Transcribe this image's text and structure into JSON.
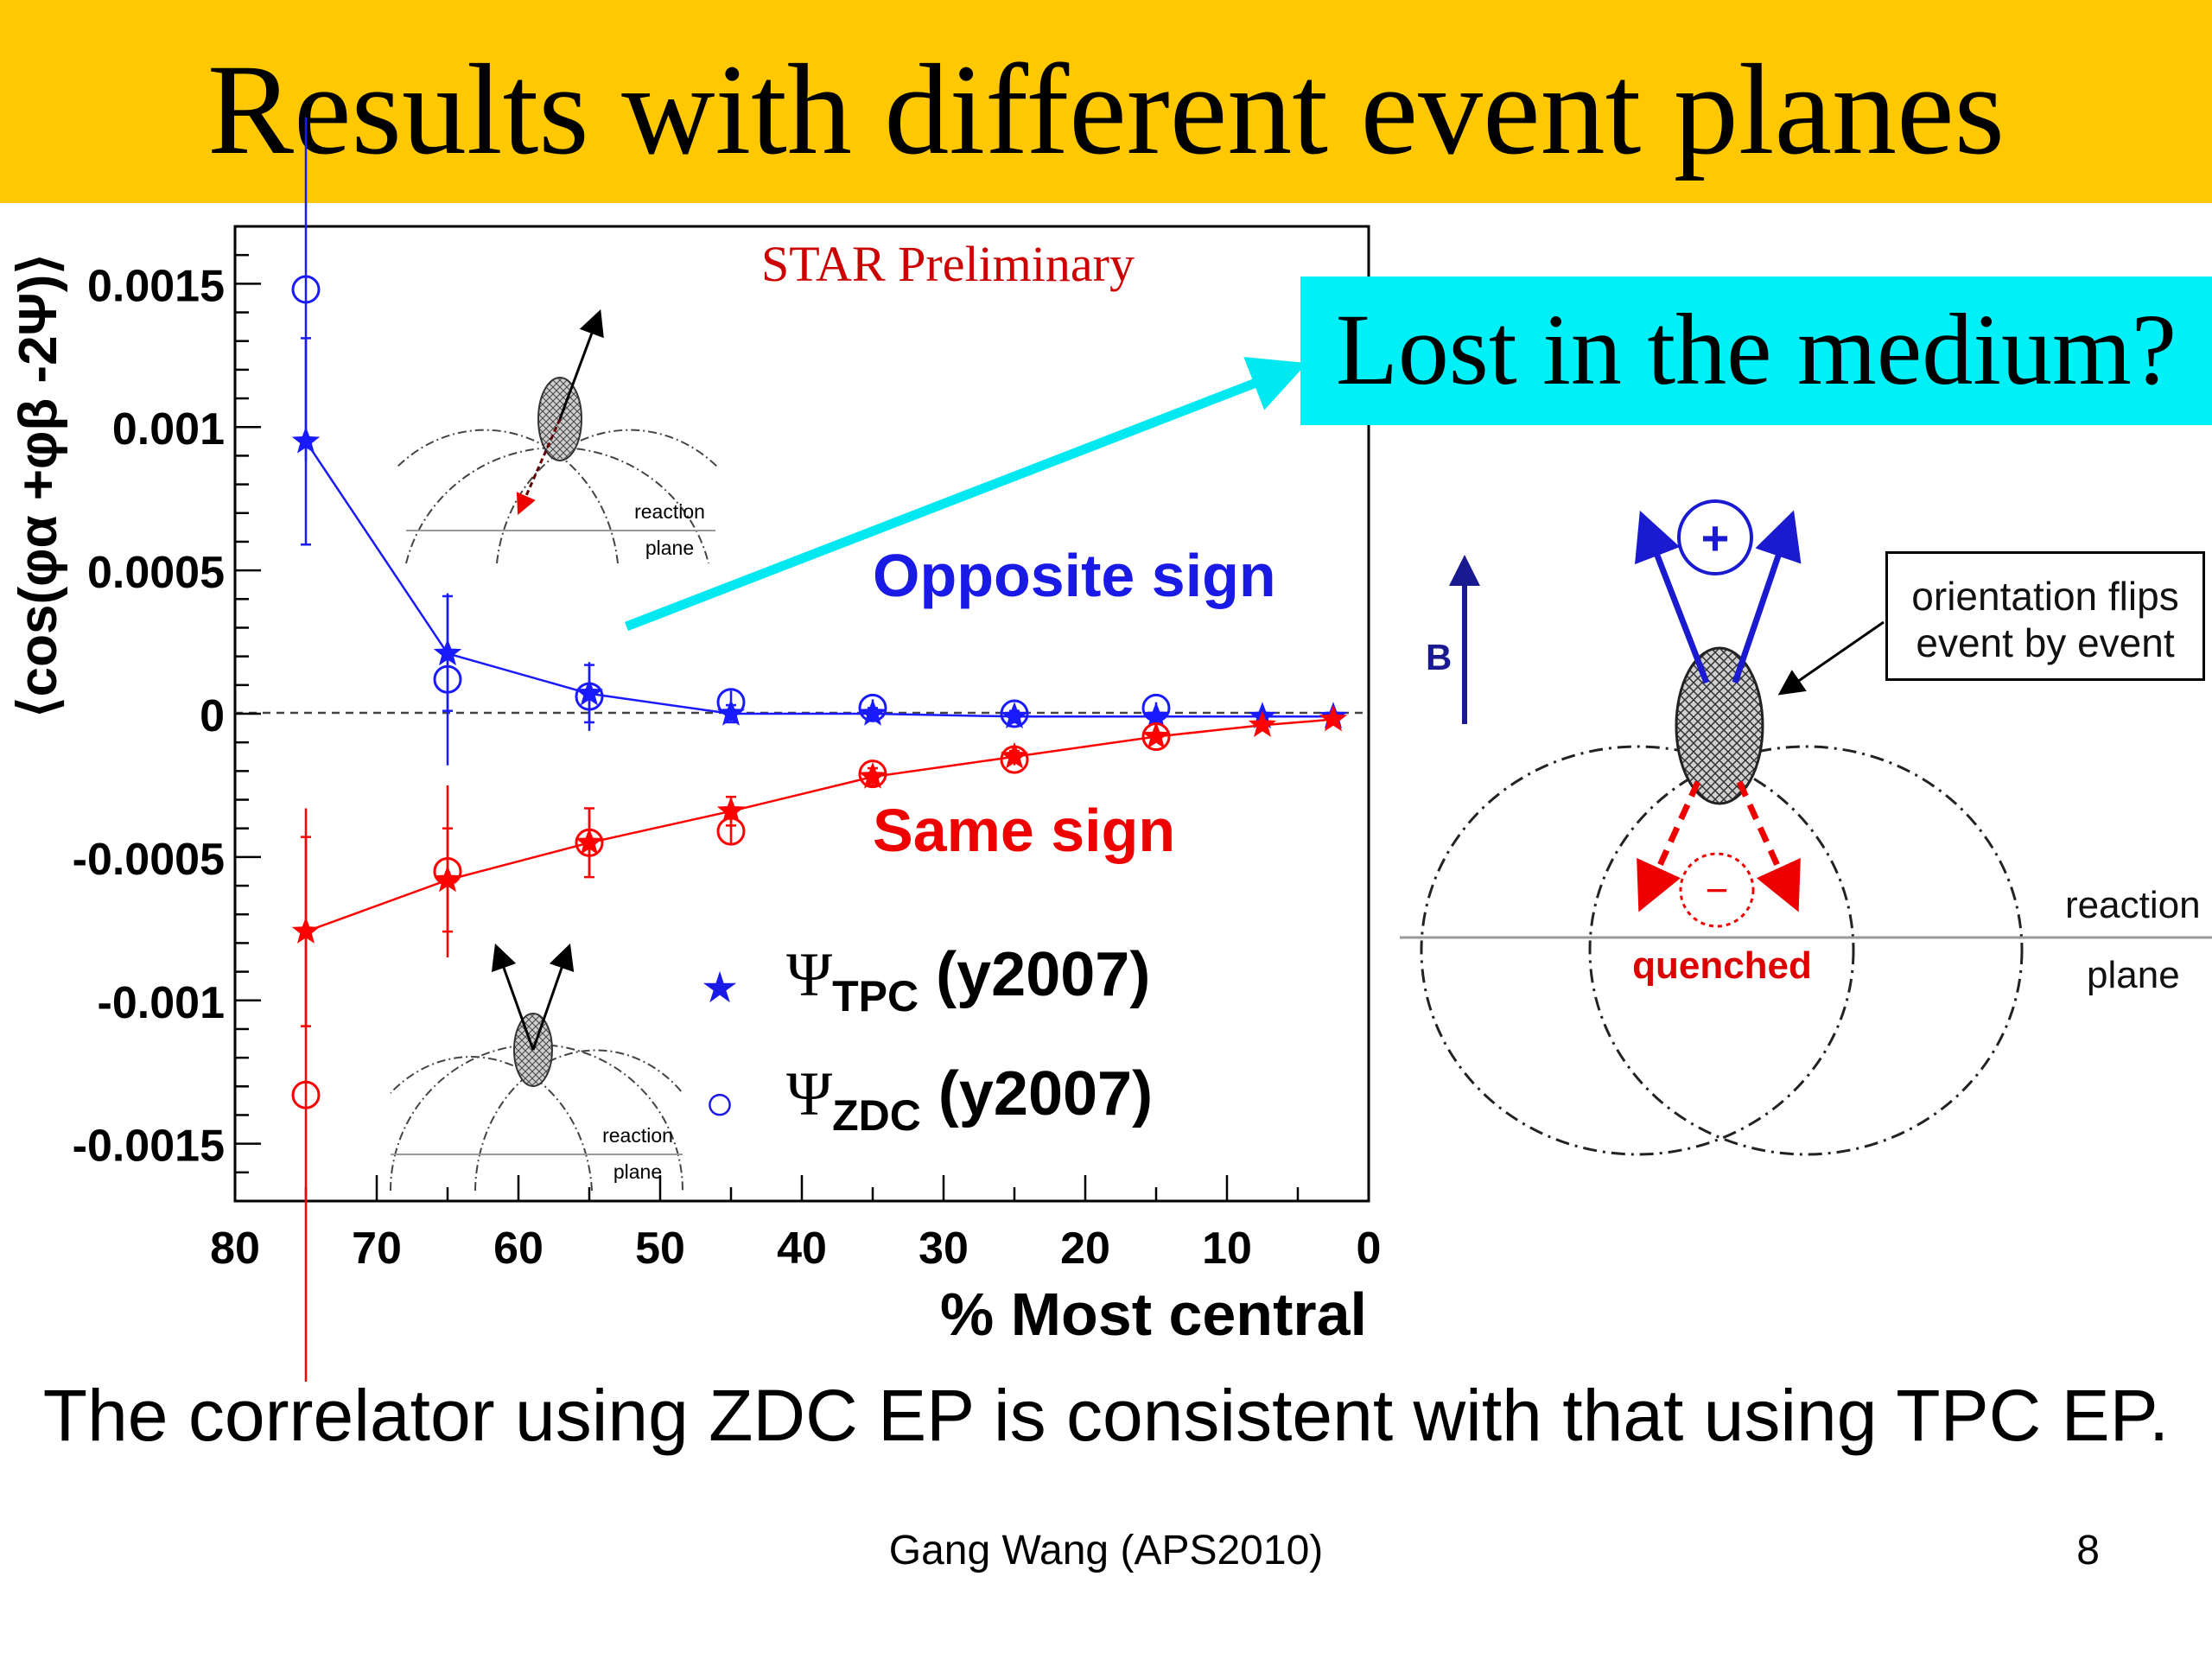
{
  "slide": {
    "title": "Results with different event planes",
    "callout": "Lost in the medium?",
    "caption": "The correlator using ZDC EP is consistent with that using TPC EP.",
    "footer": "Gang Wang (APS2010)",
    "page_number": "8"
  },
  "chart_data": {
    "type": "scatter",
    "title": "",
    "watermark": "STAR Preliminary",
    "xlabel": "% Most central",
    "ylabel": "⟨cos(φα +φβ -2Ψ)⟩",
    "xlim": [
      80,
      0
    ],
    "ylim": [
      -0.0017,
      0.0017
    ],
    "xticks": [
      "80",
      "70",
      "60",
      "50",
      "40",
      "30",
      "20",
      "10",
      "0"
    ],
    "yticks": [
      "0.0015",
      "0.001",
      "0.0005",
      "0",
      "-0.0005",
      "-0.001",
      "-0.0015"
    ],
    "grid": false,
    "legend_position": "bottom-center",
    "annotations": {
      "opposite": "Opposite sign",
      "same": "Same sign"
    },
    "series": [
      {
        "name": "ΨTPC (y2007)",
        "group": "opposite",
        "marker": "star",
        "color": "#1a1aff",
        "line": true,
        "x": [
          75,
          65,
          55,
          45,
          35,
          25,
          15,
          7.5,
          2.5
        ],
        "y": [
          0.00095,
          0.00021,
          7e-05,
          0.0,
          0.0,
          -1e-05,
          -1e-05,
          -1e-05,
          -1e-05
        ],
        "err": [
          0.00036,
          0.0002,
          0.0001,
          3e-05,
          2e-05,
          2e-05,
          1e-05,
          1e-05,
          1e-05
        ]
      },
      {
        "name": "ΨZDC (y2007)",
        "group": "opposite",
        "marker": "circle",
        "color": "#1a1aff",
        "line": false,
        "x": [
          75,
          65,
          55,
          45,
          35,
          25,
          15
        ],
        "y": [
          0.00148,
          0.00012,
          6e-05,
          4e-05,
          2e-05,
          0.0,
          2e-05
        ],
        "err": [
          0.0006,
          0.0003,
          0.00012,
          4e-05,
          3e-05,
          2e-05,
          2e-05
        ]
      },
      {
        "name": "ΨTPC (y2007)",
        "group": "same",
        "marker": "star",
        "color": "#ff0000",
        "line": true,
        "x": [
          75,
          65,
          55,
          45,
          35,
          25,
          15,
          7.5,
          2.5
        ],
        "y": [
          -0.00076,
          -0.00058,
          -0.00045,
          -0.00034,
          -0.00022,
          -0.00015,
          -8e-05,
          -4e-05,
          -2e-05
        ],
        "err": [
          0.00033,
          0.00018,
          0.00012,
          5e-05,
          3e-05,
          2e-05,
          1e-05,
          1e-05,
          1e-05
        ]
      },
      {
        "name": "ΨZDC (y2007)",
        "group": "same",
        "marker": "circle",
        "color": "#ff0000",
        "line": false,
        "x": [
          75,
          65,
          55,
          45,
          35,
          25,
          15
        ],
        "y": [
          -0.00133,
          -0.00055,
          -0.00045,
          -0.00041,
          -0.00021,
          -0.00016,
          -8e-05
        ],
        "err": [
          0.001,
          0.0003,
          0.00012,
          5e-05,
          3e-05,
          2e-05,
          1e-05
        ]
      }
    ],
    "legend": [
      {
        "symbol": "★",
        "base": "Ψ",
        "sub": "TPC",
        "suffix": " (y2007)"
      },
      {
        "symbol": "○",
        "base": "Ψ",
        "sub": "ZDC",
        "suffix": " (y2007)"
      }
    ]
  },
  "diagrams": {
    "inset_label_1": "reaction",
    "inset_label_2": "plane",
    "b_label": "B",
    "plus_label": "+",
    "minus_label": "−",
    "quenched_label": "quenched",
    "orientation_note": "orientation flips\nevent by event",
    "reaction_label": "reaction",
    "plane_label": "plane"
  }
}
